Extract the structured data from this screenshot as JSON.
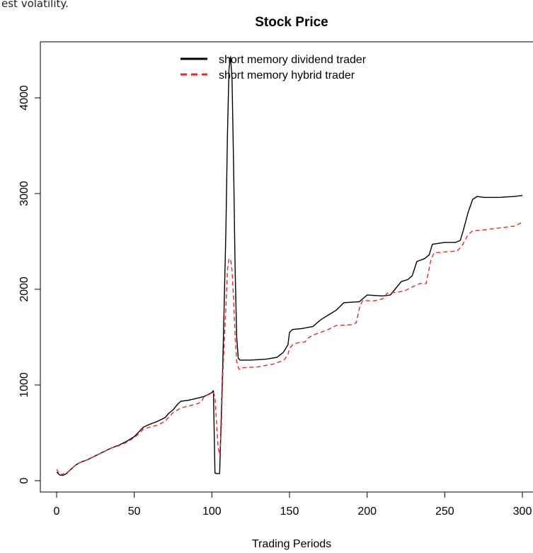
{
  "top_caption_fragment": "est volatility.",
  "chart_data": {
    "type": "line",
    "title": "Stock Price",
    "xlabel": "Trading Periods",
    "ylabel": "",
    "xlim": [
      -10,
      300
    ],
    "ylim": [
      -100,
      4480
    ],
    "xticks": [
      0,
      50,
      100,
      150,
      200,
      250,
      300
    ],
    "yticks": [
      0,
      1000,
      2000,
      3000,
      4000
    ],
    "legend_position": "top-center",
    "series": [
      {
        "name": "short memory dividend trader",
        "color": "#000000",
        "dash": "solid",
        "points": [
          [
            0,
            90
          ],
          [
            2,
            60
          ],
          [
            4,
            55
          ],
          [
            6,
            70
          ],
          [
            8,
            100
          ],
          [
            10,
            130
          ],
          [
            12,
            160
          ],
          [
            15,
            190
          ],
          [
            20,
            220
          ],
          [
            25,
            260
          ],
          [
            30,
            300
          ],
          [
            35,
            340
          ],
          [
            40,
            370
          ],
          [
            45,
            410
          ],
          [
            50,
            460
          ],
          [
            53,
            510
          ],
          [
            56,
            560
          ],
          [
            60,
            590
          ],
          [
            65,
            620
          ],
          [
            70,
            660
          ],
          [
            72,
            700
          ],
          [
            75,
            740
          ],
          [
            78,
            800
          ],
          [
            80,
            830
          ],
          [
            85,
            840
          ],
          [
            90,
            860
          ],
          [
            95,
            880
          ],
          [
            100,
            920
          ],
          [
            101,
            940
          ],
          [
            102,
            80
          ],
          [
            103,
            75
          ],
          [
            105,
            75
          ],
          [
            107,
            1200
          ],
          [
            109,
            2600
          ],
          [
            110,
            3600
          ],
          [
            111,
            4300
          ],
          [
            112,
            4430
          ],
          [
            113,
            4200
          ],
          [
            114,
            3300
          ],
          [
            115,
            2200
          ],
          [
            116,
            1500
          ],
          [
            117,
            1280
          ],
          [
            118,
            1260
          ],
          [
            125,
            1260
          ],
          [
            135,
            1270
          ],
          [
            142,
            1290
          ],
          [
            146,
            1340
          ],
          [
            149,
            1420
          ],
          [
            150,
            1550
          ],
          [
            152,
            1580
          ],
          [
            158,
            1590
          ],
          [
            165,
            1610
          ],
          [
            170,
            1680
          ],
          [
            175,
            1730
          ],
          [
            180,
            1780
          ],
          [
            185,
            1860
          ],
          [
            195,
            1870
          ],
          [
            200,
            1940
          ],
          [
            210,
            1930
          ],
          [
            215,
            1940
          ],
          [
            218,
            2000
          ],
          [
            222,
            2080
          ],
          [
            226,
            2100
          ],
          [
            229,
            2140
          ],
          [
            232,
            2290
          ],
          [
            237,
            2320
          ],
          [
            240,
            2360
          ],
          [
            242,
            2470
          ],
          [
            250,
            2490
          ],
          [
            257,
            2490
          ],
          [
            260,
            2510
          ],
          [
            262,
            2620
          ],
          [
            265,
            2800
          ],
          [
            268,
            2940
          ],
          [
            271,
            2970
          ],
          [
            275,
            2960
          ],
          [
            285,
            2960
          ],
          [
            295,
            2970
          ],
          [
            300,
            2980
          ]
        ]
      },
      {
        "name": "short memory hybrid trader",
        "color": "#e8272a",
        "dash": "dashed",
        "points": [
          [
            0,
            120
          ],
          [
            2,
            60
          ],
          [
            4,
            70
          ],
          [
            6,
            80
          ],
          [
            8,
            100
          ],
          [
            10,
            130
          ],
          [
            12,
            160
          ],
          [
            15,
            190
          ],
          [
            20,
            220
          ],
          [
            25,
            260
          ],
          [
            30,
            300
          ],
          [
            35,
            340
          ],
          [
            40,
            365
          ],
          [
            45,
            400
          ],
          [
            50,
            450
          ],
          [
            53,
            490
          ],
          [
            56,
            540
          ],
          [
            60,
            560
          ],
          [
            65,
            580
          ],
          [
            70,
            620
          ],
          [
            72,
            660
          ],
          [
            75,
            710
          ],
          [
            78,
            740
          ],
          [
            80,
            760
          ],
          [
            85,
            780
          ],
          [
            90,
            800
          ],
          [
            93,
            820
          ],
          [
            95,
            880
          ],
          [
            98,
            900
          ],
          [
            100,
            910
          ],
          [
            101,
            920
          ],
          [
            102,
            880
          ],
          [
            103,
            600
          ],
          [
            104,
            350
          ],
          [
            105,
            270
          ],
          [
            106,
            500
          ],
          [
            107,
            1100
          ],
          [
            109,
            1800
          ],
          [
            110,
            2200
          ],
          [
            111,
            2320
          ],
          [
            112,
            2310
          ],
          [
            113,
            2200
          ],
          [
            114,
            1900
          ],
          [
            115,
            1500
          ],
          [
            116,
            1250
          ],
          [
            117,
            1180
          ],
          [
            118,
            1160
          ],
          [
            120,
            1180
          ],
          [
            130,
            1190
          ],
          [
            140,
            1220
          ],
          [
            145,
            1250
          ],
          [
            147,
            1270
          ],
          [
            149,
            1320
          ],
          [
            150,
            1380
          ],
          [
            152,
            1420
          ],
          [
            155,
            1440
          ],
          [
            160,
            1450
          ],
          [
            162,
            1490
          ],
          [
            165,
            1520
          ],
          [
            170,
            1550
          ],
          [
            175,
            1580
          ],
          [
            180,
            1620
          ],
          [
            190,
            1630
          ],
          [
            193,
            1650
          ],
          [
            195,
            1800
          ],
          [
            197,
            1880
          ],
          [
            205,
            1880
          ],
          [
            210,
            1900
          ],
          [
            213,
            1960
          ],
          [
            220,
            1970
          ],
          [
            225,
            1990
          ],
          [
            230,
            2030
          ],
          [
            234,
            2060
          ],
          [
            238,
            2060
          ],
          [
            241,
            2300
          ],
          [
            243,
            2380
          ],
          [
            250,
            2390
          ],
          [
            258,
            2400
          ],
          [
            261,
            2450
          ],
          [
            265,
            2570
          ],
          [
            268,
            2610
          ],
          [
            275,
            2620
          ],
          [
            285,
            2640
          ],
          [
            295,
            2660
          ],
          [
            300,
            2700
          ]
        ]
      }
    ]
  }
}
